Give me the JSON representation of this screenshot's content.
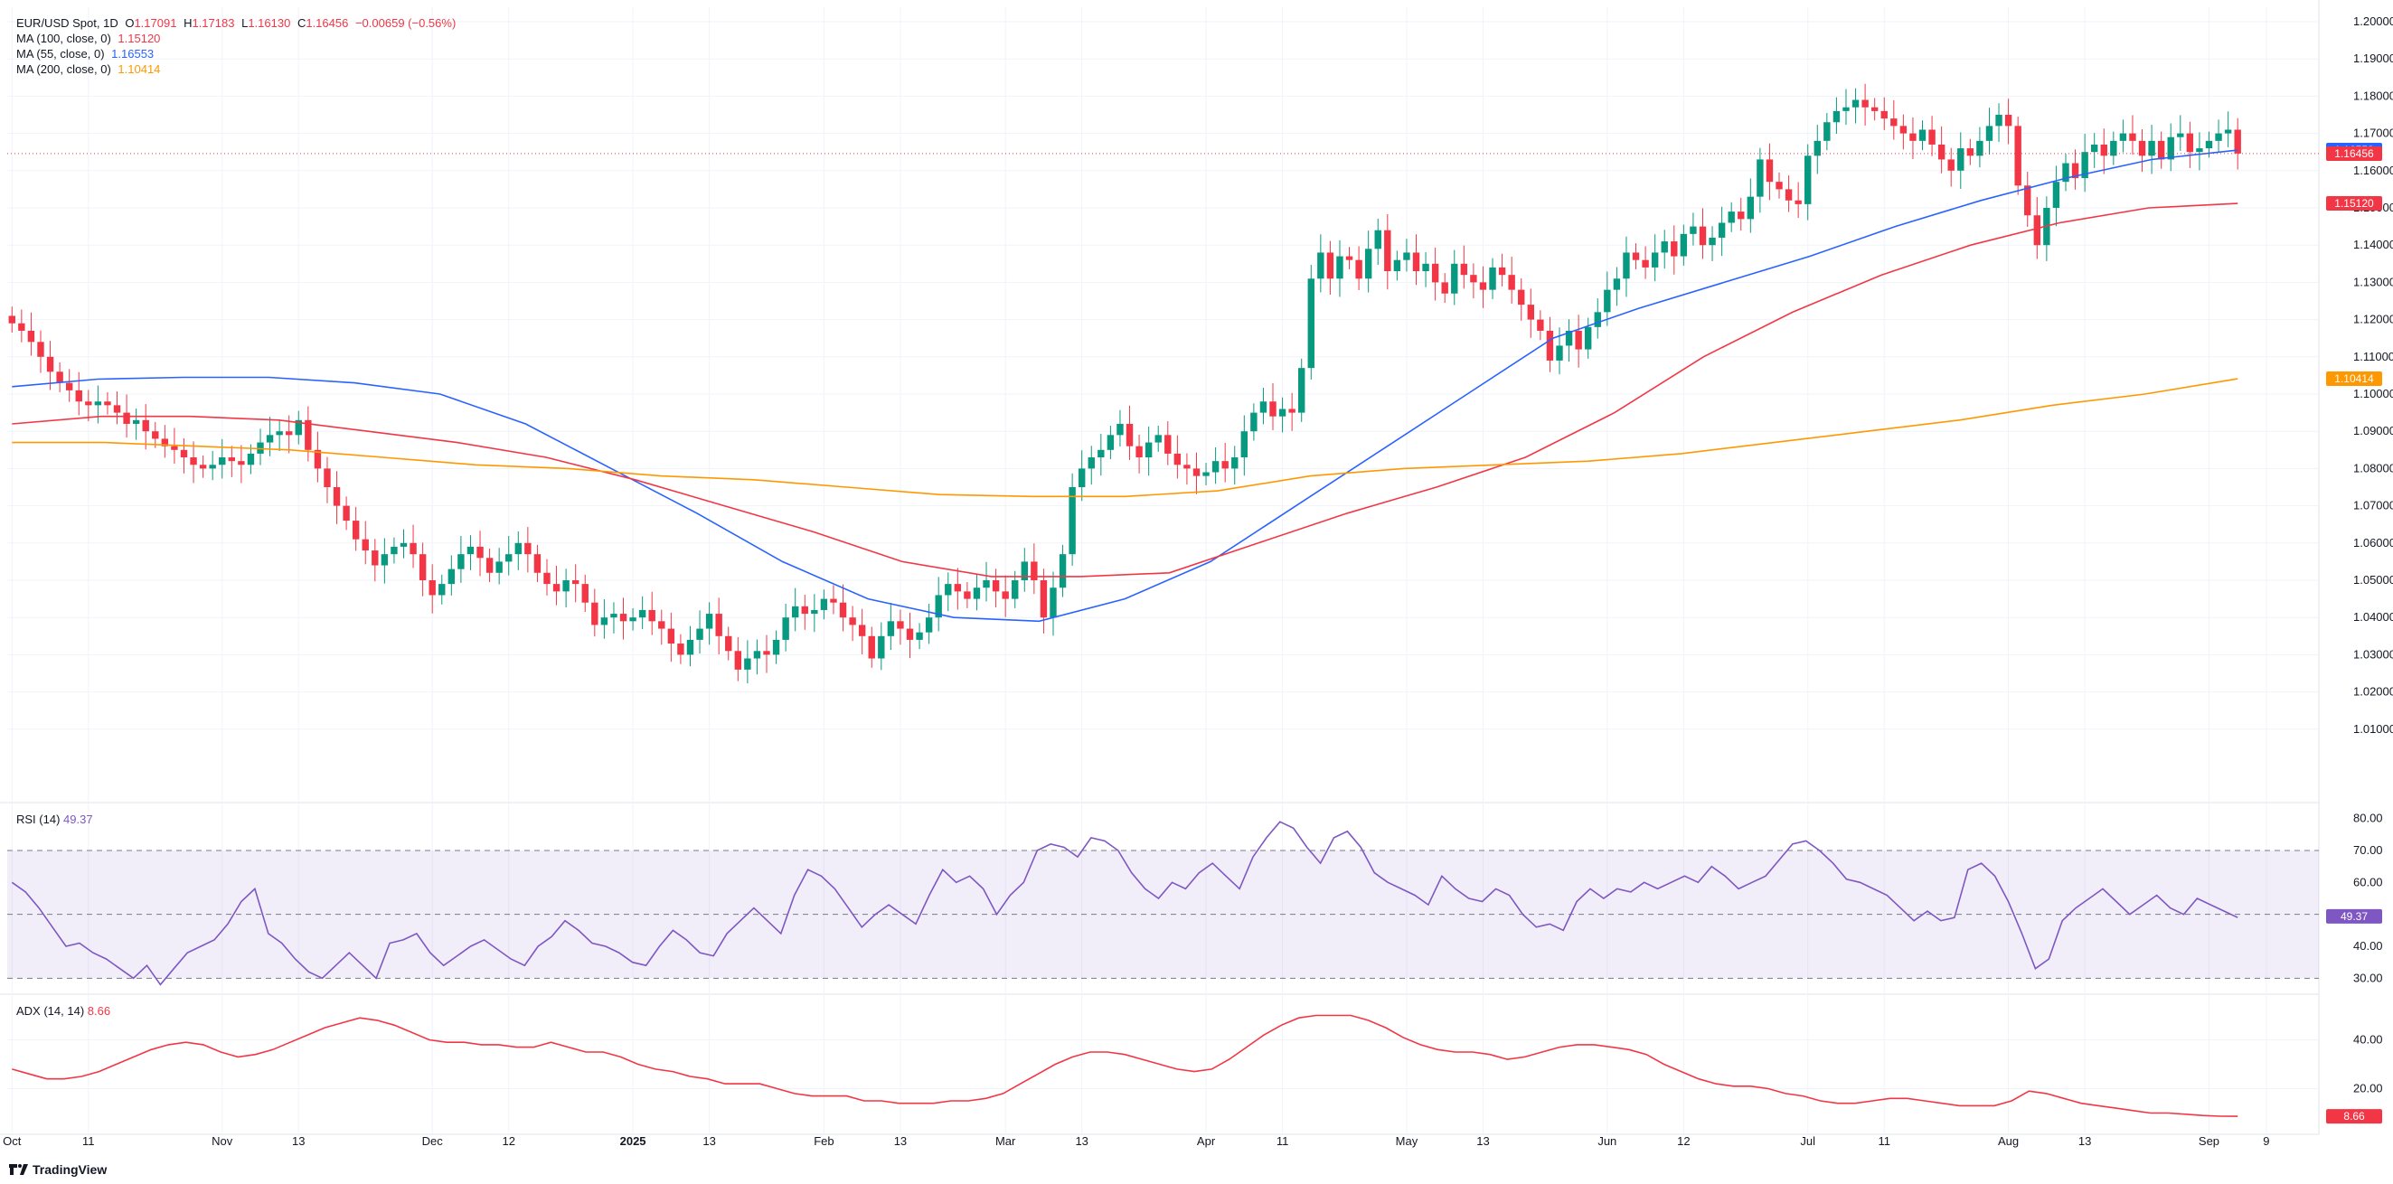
{
  "header": {
    "symbol": "EUR/USD Spot, 1D",
    "open_label": "O",
    "open": "1.17091",
    "high_label": "H",
    "high": "1.17183",
    "low_label": "L",
    "low": "1.16130",
    "close_label": "C",
    "close": "1.16456",
    "change": "−0.00659 (−0.56%)"
  },
  "indicators": [
    {
      "label": "MA (100, close, 0)",
      "value": "1.15120",
      "color": "#f23645"
    },
    {
      "label": "MA (55, close, 0)",
      "value": "1.16553",
      "color": "#2962ff"
    },
    {
      "label": "MA (200, close, 0)",
      "value": "1.10414",
      "color": "#ff9800"
    }
  ],
  "rsi": {
    "label": "RSI (14)",
    "value": "49.37",
    "color": "#7e57c2"
  },
  "adx": {
    "label": "ADX (14, 14)",
    "value": "8.66",
    "color": "#f23645"
  },
  "branding": {
    "logo_text": "TradingView"
  },
  "price_tags": [
    {
      "value": "1.16553",
      "color": "#2962ff",
      "price": 1.16553
    },
    {
      "value": "1.16456",
      "color": "#f23645",
      "price": 1.16456
    },
    {
      "value": "1.15120",
      "color": "#f23645",
      "price": 1.1512
    },
    {
      "value": "1.10414",
      "color": "#ff9800",
      "price": 1.10414
    }
  ],
  "chart_data": {
    "type": "candlestick",
    "price_axis": {
      "min": 1.0,
      "max": 1.2,
      "ticks": [
        "1.20000",
        "1.19000",
        "1.18000",
        "1.17000",
        "1.16000",
        "1.15000",
        "1.14000",
        "1.13000",
        "1.12000",
        "1.11000",
        "1.10000",
        "1.09000",
        "1.08000",
        "1.07000",
        "1.06000",
        "1.05000",
        "1.04000",
        "1.03000",
        "1.02000",
        "1.01000"
      ]
    },
    "x_axis_labels": [
      "Oct",
      "11",
      "Nov",
      "13",
      "Dec",
      "12",
      "2025",
      "13",
      "Feb",
      "13",
      "Mar",
      "13",
      "Apr",
      "11",
      "May",
      "13",
      "Jun",
      "12",
      "Jul",
      "11",
      "Aug",
      "13",
      "Sep",
      "9"
    ],
    "x_axis_positions": [
      0,
      8,
      22,
      30,
      44,
      52,
      65,
      73,
      85,
      93,
      104,
      112,
      125,
      133,
      146,
      154,
      167,
      175,
      188,
      196,
      209,
      217,
      230,
      236
    ],
    "close_series": [
      1.119,
      1.117,
      1.114,
      1.11,
      1.106,
      1.103,
      1.101,
      1.098,
      1.097,
      1.098,
      1.097,
      1.095,
      1.092,
      1.093,
      1.09,
      1.088,
      1.086,
      1.085,
      1.083,
      1.081,
      1.08,
      1.081,
      1.083,
      1.082,
      1.081,
      1.084,
      1.087,
      1.089,
      1.09,
      1.089,
      1.093,
      1.085,
      1.08,
      1.075,
      1.07,
      1.066,
      1.061,
      1.058,
      1.054,
      1.057,
      1.059,
      1.06,
      1.057,
      1.05,
      1.046,
      1.049,
      1.053,
      1.057,
      1.059,
      1.056,
      1.052,
      1.055,
      1.057,
      1.06,
      1.057,
      1.052,
      1.049,
      1.047,
      1.05,
      1.049,
      1.044,
      1.038,
      1.04,
      1.041,
      1.039,
      1.04,
      1.042,
      1.039,
      1.037,
      1.033,
      1.03,
      1.034,
      1.037,
      1.041,
      1.035,
      1.031,
      1.026,
      1.029,
      1.031,
      1.03,
      1.034,
      1.04,
      1.043,
      1.041,
      1.042,
      1.045,
      1.044,
      1.04,
      1.038,
      1.035,
      1.029,
      1.035,
      1.039,
      1.037,
      1.034,
      1.036,
      1.04,
      1.046,
      1.049,
      1.047,
      1.045,
      1.048,
      1.05,
      1.047,
      1.045,
      1.05,
      1.055,
      1.05,
      1.04,
      1.048,
      1.057,
      1.075,
      1.08,
      1.083,
      1.085,
      1.089,
      1.092,
      1.086,
      1.083,
      1.087,
      1.089,
      1.084,
      1.081,
      1.08,
      1.078,
      1.079,
      1.082,
      1.08,
      1.083,
      1.09,
      1.095,
      1.098,
      1.094,
      1.096,
      1.095,
      1.107,
      1.131,
      1.138,
      1.131,
      1.137,
      1.136,
      1.131,
      1.139,
      1.144,
      1.133,
      1.136,
      1.138,
      1.133,
      1.135,
      1.13,
      1.127,
      1.135,
      1.132,
      1.13,
      1.128,
      1.134,
      1.132,
      1.128,
      1.124,
      1.12,
      1.117,
      1.109,
      1.113,
      1.117,
      1.112,
      1.118,
      1.122,
      1.128,
      1.131,
      1.138,
      1.136,
      1.134,
      1.138,
      1.141,
      1.137,
      1.143,
      1.145,
      1.14,
      1.142,
      1.146,
      1.149,
      1.147,
      1.153,
      1.163,
      1.157,
      1.155,
      1.152,
      1.151,
      1.164,
      1.168,
      1.173,
      1.176,
      1.177,
      1.179,
      1.177,
      1.176,
      1.174,
      1.172,
      1.17,
      1.168,
      1.171,
      1.167,
      1.163,
      1.16,
      1.166,
      1.164,
      1.168,
      1.172,
      1.175,
      1.172,
      1.156,
      1.148,
      1.14,
      1.15,
      1.157,
      1.162,
      1.158,
      1.165,
      1.167,
      1.164,
      1.168,
      1.17,
      1.168,
      1.164,
      1.168,
      1.163,
      1.169,
      1.17,
      1.165,
      1.166,
      1.168,
      1.17,
      1.171,
      1.1646
    ],
    "series": [
      {
        "name": "MA (55, close, 0)",
        "color": "#2962ff",
        "values": [
          1.102,
          1.104,
          1.1045,
          1.1045,
          1.103,
          1.1,
          1.092,
          1.08,
          1.068,
          1.055,
          1.045,
          1.04,
          1.039,
          1.045,
          1.055,
          1.07,
          1.085,
          1.1,
          1.115,
          1.123,
          1.13,
          1.137,
          1.145,
          1.152,
          1.158,
          1.163,
          1.1655
        ]
      },
      {
        "name": "MA (100, close, 0)",
        "color": "#f23645",
        "values": [
          1.092,
          1.094,
          1.094,
          1.093,
          1.09,
          1.087,
          1.083,
          1.077,
          1.07,
          1.063,
          1.055,
          1.051,
          1.051,
          1.052,
          1.06,
          1.068,
          1.075,
          1.083,
          1.095,
          1.11,
          1.122,
          1.132,
          1.14,
          1.146,
          1.15,
          1.1512
        ]
      },
      {
        "name": "MA (200, close, 0)",
        "color": "#ff9800",
        "values": [
          1.087,
          1.087,
          1.086,
          1.085,
          1.083,
          1.081,
          1.08,
          1.078,
          1.077,
          1.075,
          1.073,
          1.0725,
          1.0725,
          1.074,
          1.078,
          1.08,
          1.081,
          1.082,
          1.084,
          1.087,
          1.09,
          1.093,
          1.097,
          1.1,
          1.1041
        ]
      }
    ],
    "rsi_axis": {
      "min": 25,
      "max": 85,
      "ticks": [
        "80.00",
        "70.00",
        "60.00",
        "40.00",
        "30.00"
      ],
      "band": [
        30,
        70
      ],
      "midline": 50
    },
    "rsi_series": [
      60,
      57,
      52,
      46,
      40,
      41,
      38,
      36,
      33,
      30,
      34,
      28,
      33,
      38,
      40,
      42,
      47,
      54,
      58,
      44,
      41,
      36,
      32,
      30,
      34,
      38,
      34,
      30,
      41,
      42,
      44,
      38,
      34,
      37,
      40,
      42,
      39,
      36,
      34,
      40,
      43,
      48,
      45,
      41,
      40,
      38,
      35,
      34,
      40,
      45,
      42,
      38,
      37,
      44,
      48,
      52,
      48,
      44,
      56,
      64,
      62,
      58,
      52,
      46,
      50,
      53,
      50,
      47,
      56,
      64,
      60,
      62,
      58,
      50,
      56,
      60,
      70,
      72,
      71,
      68,
      74,
      73,
      70,
      63,
      58,
      55,
      60,
      58,
      63,
      66,
      62,
      58,
      68,
      74,
      79,
      77,
      71,
      66,
      74,
      76,
      71,
      63,
      60,
      58,
      56,
      53,
      62,
      58,
      55,
      54,
      58,
      56,
      50,
      46,
      47,
      45,
      54,
      58,
      55,
      58,
      57,
      60,
      58,
      60,
      62,
      60,
      65,
      62,
      58,
      60,
      62,
      67,
      72,
      73,
      70,
      66,
      61,
      60,
      58,
      56,
      52,
      48,
      51,
      48,
      49,
      64,
      66,
      62,
      54,
      44,
      33,
      36,
      48,
      52,
      55,
      58,
      54,
      50,
      53,
      56,
      52,
      50,
      55,
      53,
      51,
      49
    ],
    "adx_axis": {
      "min": 5,
      "max": 55,
      "ticks": [
        "40.00",
        "20.00"
      ]
    },
    "adx_series": [
      28,
      26,
      24,
      24,
      25,
      27,
      30,
      33,
      36,
      38,
      39,
      38,
      35,
      33,
      34,
      36,
      39,
      42,
      45,
      47,
      49,
      48,
      46,
      43,
      40,
      39,
      39,
      38,
      38,
      37,
      37,
      39,
      37,
      35,
      35,
      33,
      30,
      28,
      27,
      25,
      24,
      22,
      22,
      22,
      20,
      18,
      17,
      17,
      17,
      15,
      15,
      14,
      14,
      14,
      15,
      15,
      16,
      18,
      22,
      26,
      30,
      33,
      35,
      35,
      34,
      32,
      30,
      28,
      27,
      28,
      32,
      37,
      42,
      46,
      49,
      50,
      50,
      50,
      48,
      45,
      41,
      38,
      36,
      35,
      35,
      34,
      32,
      33,
      35,
      37,
      38,
      38,
      37,
      36,
      34,
      30,
      27,
      24,
      22,
      21,
      21,
      20,
      18,
      17,
      15,
      14,
      14,
      15,
      16,
      16,
      15,
      14,
      13,
      13,
      13,
      15,
      19,
      18,
      16,
      14,
      13,
      12,
      11,
      10,
      10,
      9.5,
      9,
      8.7,
      8.66
    ]
  }
}
